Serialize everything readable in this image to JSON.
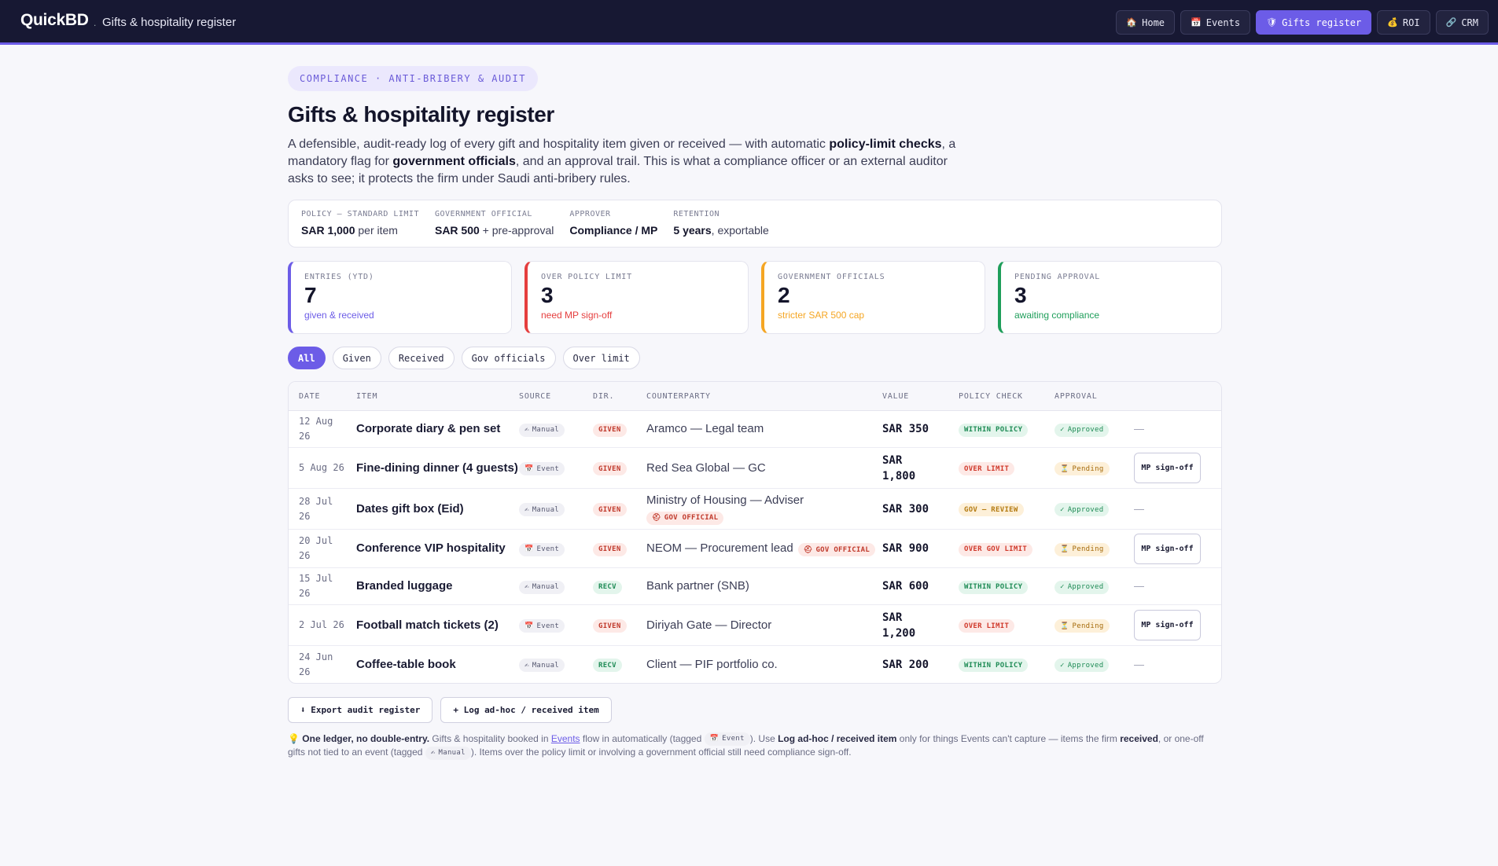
{
  "header": {
    "brand": "QuickBD",
    "brand_sep": ".",
    "subtitle": "Gifts & hospitality register",
    "nav": [
      {
        "icon": "🏠",
        "icon_name": "home-icon",
        "label": "Home",
        "active": false
      },
      {
        "icon": "📅",
        "icon_name": "calendar-icon",
        "label": "Events",
        "active": false
      },
      {
        "icon": "🛡",
        "icon_name": "shield-icon",
        "label": "Gifts register",
        "active": true
      },
      {
        "icon": "💰",
        "icon_name": "money-bag-icon",
        "label": "ROI",
        "active": false
      },
      {
        "icon": "🔗",
        "icon_name": "link-icon",
        "label": "CRM",
        "active": false
      }
    ]
  },
  "page": {
    "eyebrow": "COMPLIANCE · ANTI-BRIBERY & AUDIT",
    "title": "Gifts & hospitality register",
    "lead": {
      "p1": "A defensible, audit-ready log of every gift and hospitality item given or received — with automatic ",
      "b1": "policy-limit checks",
      "p2": ", a mandatory flag for ",
      "b2": "government officials",
      "p3": ", and an approval trail. This is what a compliance officer or an external auditor asks to see; it protects the firm under Saudi anti-bribery rules."
    }
  },
  "policy": [
    {
      "key": "POLICY — STANDARD LIMIT",
      "bold": "SAR 1,000",
      "rest": " per item"
    },
    {
      "key": "GOVERNMENT OFFICIAL",
      "bold": "SAR 500",
      "rest": " + pre-approval"
    },
    {
      "key": "APPROVER",
      "bold": "Compliance / MP",
      "rest": ""
    },
    {
      "key": "RETENTION",
      "bold": "5 years",
      "rest": ", exportable"
    }
  ],
  "stats": [
    {
      "key": "ENTRIES (YTD)",
      "value": "7",
      "sub": "given & received",
      "color": "#6c5ce7"
    },
    {
      "key": "OVER POLICY LIMIT",
      "value": "3",
      "sub": "need MP sign-off",
      "color": "#e53e3e"
    },
    {
      "key": "GOVERNMENT OFFICIALS",
      "value": "2",
      "sub": "stricter SAR 500 cap",
      "color": "#f5a623"
    },
    {
      "key": "PENDING APPROVAL",
      "value": "3",
      "sub": "awaiting compliance",
      "color": "#1e9e5a"
    }
  ],
  "filters": [
    "All",
    "Given",
    "Received",
    "Gov officials",
    "Over limit"
  ],
  "table": {
    "headers": [
      "DATE",
      "ITEM",
      "SOURCE",
      "DIR.",
      "COUNTERPARTY",
      "VALUE",
      "POLICY CHECK",
      "APPROVAL"
    ],
    "rows": [
      {
        "date1": "12 Aug",
        "date2": "26",
        "item": "Corporate diary & pen set",
        "source": "Manual",
        "source_icon": "✍",
        "dir": "GIVEN",
        "counterparty": "Aramco — Legal team",
        "gov": "",
        "value1": "SAR 350",
        "value2": "",
        "policy": "WITHIN POLICY",
        "approval": "Approved",
        "action": "—"
      },
      {
        "date1": "5 Aug 26",
        "date2": "",
        "item": "Fine-dining dinner (4 guests)",
        "source": "Event",
        "source_icon": "📅",
        "dir": "GIVEN",
        "counterparty": "Red Sea Global — GC",
        "gov": "",
        "value1": "SAR",
        "value2": "1,800",
        "policy": "OVER LIMIT",
        "approval": "Pending",
        "action": "MP sign-off"
      },
      {
        "date1": "28 Jul",
        "date2": "26",
        "item": "Dates gift box (Eid)",
        "source": "Manual",
        "source_icon": "✍",
        "dir": "GIVEN",
        "counterparty": "Ministry of Housing — Adviser",
        "gov": "GOV OFFICIAL",
        "value1": "SAR 300",
        "value2": "",
        "policy": "GOV — REVIEW",
        "approval": "Approved",
        "action": "—"
      },
      {
        "date1": "20 Jul",
        "date2": "26",
        "item": "Conference VIP hospitality",
        "source": "Event",
        "source_icon": "📅",
        "dir": "GIVEN",
        "counterparty": "NEOM — Procurement lead",
        "gov": "GOV OFFICIAL",
        "value1": "SAR 900",
        "value2": "",
        "policy": "OVER GOV LIMIT",
        "approval": "Pending",
        "action": "MP sign-off"
      },
      {
        "date1": "15 Jul",
        "date2": "26",
        "item": "Branded luggage",
        "source": "Manual",
        "source_icon": "✍",
        "dir": "RECV",
        "counterparty": "Bank partner (SNB)",
        "gov": "",
        "value1": "SAR 600",
        "value2": "",
        "policy": "WITHIN POLICY",
        "approval": "Approved",
        "action": "—"
      },
      {
        "date1": "2 Jul 26",
        "date2": "",
        "item": "Football match tickets (2)",
        "source": "Event",
        "source_icon": "📅",
        "dir": "GIVEN",
        "counterparty": "Diriyah Gate — Director",
        "gov": "",
        "value1": "SAR",
        "value2": "1,200",
        "policy": "OVER LIMIT",
        "approval": "Pending",
        "action": "MP sign-off"
      },
      {
        "date1": "24 Jun",
        "date2": "26",
        "item": "Coffee-table book",
        "source": "Manual",
        "source_icon": "✍",
        "dir": "RECV",
        "counterparty": "Client — PIF portfolio co.",
        "gov": "",
        "value1": "SAR 200",
        "value2": "",
        "policy": "WITHIN POLICY",
        "approval": "Approved",
        "action": "—"
      }
    ]
  },
  "actions": {
    "export": "⬇ Export audit register",
    "log": "+ Log ad-hoc / received item"
  },
  "note": {
    "icon": "💡",
    "b1": "One ledger, no double-entry.",
    "t1": " Gifts & hospitality booked in ",
    "link": "Events",
    "t2": " flow in automatically (tagged ",
    "tag_event": "Event",
    "t3": "). Use ",
    "b2": "Log ad-hoc / received item",
    "t4": " only for things Events can't capture — items the firm ",
    "b3": "received",
    "t5": ", or one-off gifts not tied to an event (tagged ",
    "tag_manual": "Manual",
    "t6": "). Items over the policy limit or involving a government official still need compliance sign-off."
  }
}
